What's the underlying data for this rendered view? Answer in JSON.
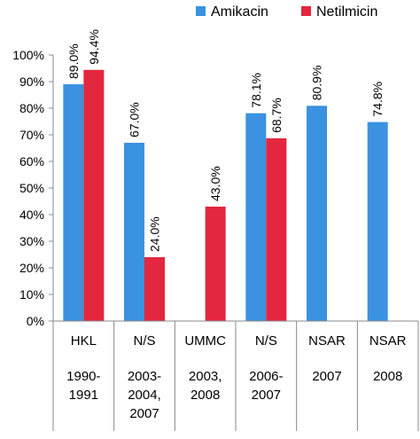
{
  "chart_data": {
    "type": "bar",
    "categories": [
      {
        "label": "HKL",
        "period": [
          "1990-",
          "1991"
        ]
      },
      {
        "label": "N/S",
        "period": [
          "2003-",
          "2004,",
          "2007"
        ]
      },
      {
        "label": "UMMC",
        "period": [
          "2003,",
          "2008"
        ]
      },
      {
        "label": "N/S",
        "period": [
          "2006-",
          "2007"
        ]
      },
      {
        "label": "NSAR",
        "period": [
          "2007"
        ]
      },
      {
        "label": "NSAR",
        "period": [
          "2008"
        ]
      }
    ],
    "series": [
      {
        "name": "Amikacin",
        "color": "#3a92e0",
        "values": [
          89.0,
          67.0,
          null,
          78.1,
          80.9,
          74.8
        ],
        "labels": [
          "89.0%",
          "67.0%",
          "",
          "78.1%",
          "80.9%",
          "74.8%"
        ]
      },
      {
        "name": "Netilmicin",
        "color": "#e3273f",
        "values": [
          94.4,
          24.0,
          43.0,
          68.7,
          null,
          null
        ],
        "labels": [
          "94.4%",
          "24.0%",
          "43.0%",
          "68.7%",
          "",
          ""
        ]
      }
    ],
    "yticks": [
      "0%",
      "10%",
      "20%",
      "30%",
      "40%",
      "50%",
      "60%",
      "70%",
      "80%",
      "90%",
      "100%"
    ],
    "ylim": [
      0,
      100
    ],
    "legend": "top-right",
    "grid": false
  }
}
